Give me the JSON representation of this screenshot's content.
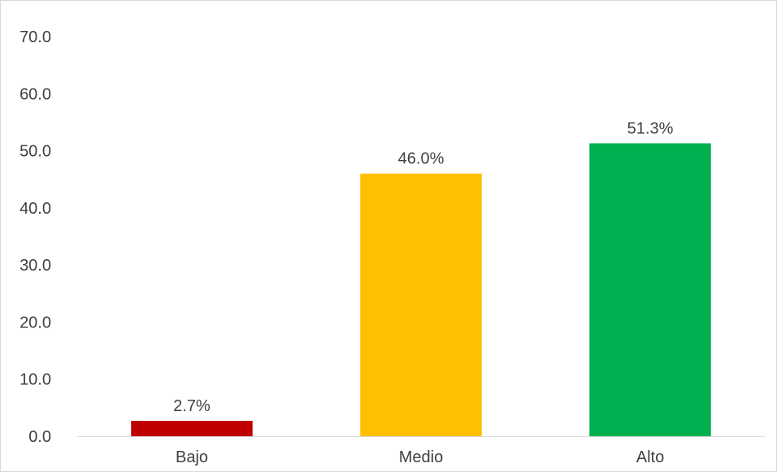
{
  "chart_data": {
    "type": "bar",
    "title": "",
    "xlabel": "",
    "ylabel": "",
    "categories": [
      "Bajo",
      "Medio",
      "Alto"
    ],
    "values": [
      2.7,
      46.0,
      51.3
    ],
    "data_labels": [
      "2.7%",
      "46.0%",
      "51.3%"
    ],
    "colors": [
      "#c00000",
      "#ffc000",
      "#00b050"
    ],
    "ylim": [
      0,
      70
    ],
    "yticks": [
      0,
      10,
      20,
      30,
      40,
      50,
      60,
      70
    ],
    "ytick_labels": [
      "0.0",
      "10.0",
      "20.0",
      "30.0",
      "40.0",
      "50.0",
      "60.0",
      "70.0"
    ],
    "grid": false,
    "legend": "none"
  }
}
